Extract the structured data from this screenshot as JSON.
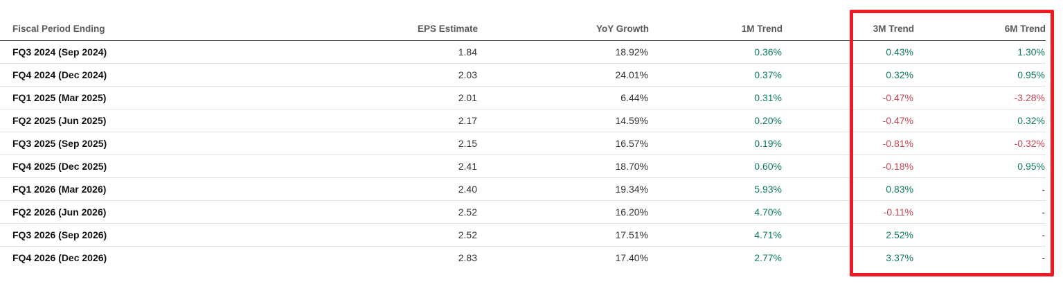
{
  "table": {
    "columns": [
      {
        "label": "Fiscal Period Ending"
      },
      {
        "label": "EPS Estimate"
      },
      {
        "label": "YoY Growth"
      },
      {
        "label": "1M Trend"
      },
      {
        "label": "3M Trend"
      },
      {
        "label": "6M Trend"
      }
    ],
    "rows": [
      {
        "period": "FQ3 2024 (Sep 2024)",
        "eps": "1.84",
        "yoy": "18.92%",
        "m1": {
          "text": "0.36%",
          "tone": "pos"
        },
        "m3": {
          "text": "0.43%",
          "tone": "pos"
        },
        "m6": {
          "text": "1.30%",
          "tone": "pos"
        }
      },
      {
        "period": "FQ4 2024 (Dec 2024)",
        "eps": "2.03",
        "yoy": "24.01%",
        "m1": {
          "text": "0.37%",
          "tone": "pos"
        },
        "m3": {
          "text": "0.32%",
          "tone": "pos"
        },
        "m6": {
          "text": "0.95%",
          "tone": "pos"
        }
      },
      {
        "period": "FQ1 2025 (Mar 2025)",
        "eps": "2.01",
        "yoy": "6.44%",
        "m1": {
          "text": "0.31%",
          "tone": "pos"
        },
        "m3": {
          "text": "-0.47%",
          "tone": "neg"
        },
        "m6": {
          "text": "-3.28%",
          "tone": "neg"
        }
      },
      {
        "period": "FQ2 2025 (Jun 2025)",
        "eps": "2.17",
        "yoy": "14.59%",
        "m1": {
          "text": "0.20%",
          "tone": "pos"
        },
        "m3": {
          "text": "-0.47%",
          "tone": "neg"
        },
        "m6": {
          "text": "0.32%",
          "tone": "pos"
        }
      },
      {
        "period": "FQ3 2025 (Sep 2025)",
        "eps": "2.15",
        "yoy": "16.57%",
        "m1": {
          "text": "0.19%",
          "tone": "pos"
        },
        "m3": {
          "text": "-0.81%",
          "tone": "neg"
        },
        "m6": {
          "text": "-0.32%",
          "tone": "neg"
        }
      },
      {
        "period": "FQ4 2025 (Dec 2025)",
        "eps": "2.41",
        "yoy": "18.70%",
        "m1": {
          "text": "0.60%",
          "tone": "pos"
        },
        "m3": {
          "text": "-0.18%",
          "tone": "neg"
        },
        "m6": {
          "text": "0.95%",
          "tone": "pos"
        }
      },
      {
        "period": "FQ1 2026 (Mar 2026)",
        "eps": "2.40",
        "yoy": "19.34%",
        "m1": {
          "text": "5.93%",
          "tone": "pos"
        },
        "m3": {
          "text": "0.83%",
          "tone": "pos"
        },
        "m6": {
          "text": "-",
          "tone": "neutral"
        }
      },
      {
        "period": "FQ2 2026 (Jun 2026)",
        "eps": "2.52",
        "yoy": "16.20%",
        "m1": {
          "text": "4.70%",
          "tone": "pos"
        },
        "m3": {
          "text": "-0.11%",
          "tone": "neg"
        },
        "m6": {
          "text": "-",
          "tone": "neutral"
        }
      },
      {
        "period": "FQ3 2026 (Sep 2026)",
        "eps": "2.52",
        "yoy": "17.51%",
        "m1": {
          "text": "4.71%",
          "tone": "pos"
        },
        "m3": {
          "text": "2.52%",
          "tone": "pos"
        },
        "m6": {
          "text": "-",
          "tone": "neutral"
        }
      },
      {
        "period": "FQ4 2026 (Dec 2026)",
        "eps": "2.83",
        "yoy": "17.40%",
        "m1": {
          "text": "2.77%",
          "tone": "pos"
        },
        "m3": {
          "text": "3.37%",
          "tone": "pos"
        },
        "m6": {
          "text": "-",
          "tone": "neutral"
        }
      }
    ]
  },
  "highlight": {
    "columns": [
      "3M Trend",
      "6M Trend"
    ],
    "color": "#ed1c24"
  },
  "colors": {
    "positive": "#0e7b5f",
    "negative": "#c74552",
    "neutral": "#222222",
    "header_text": "#595959",
    "row_label": "#111111",
    "value_text": "#333333",
    "header_rule": "#565656",
    "row_rule": "#e2e2e2"
  }
}
